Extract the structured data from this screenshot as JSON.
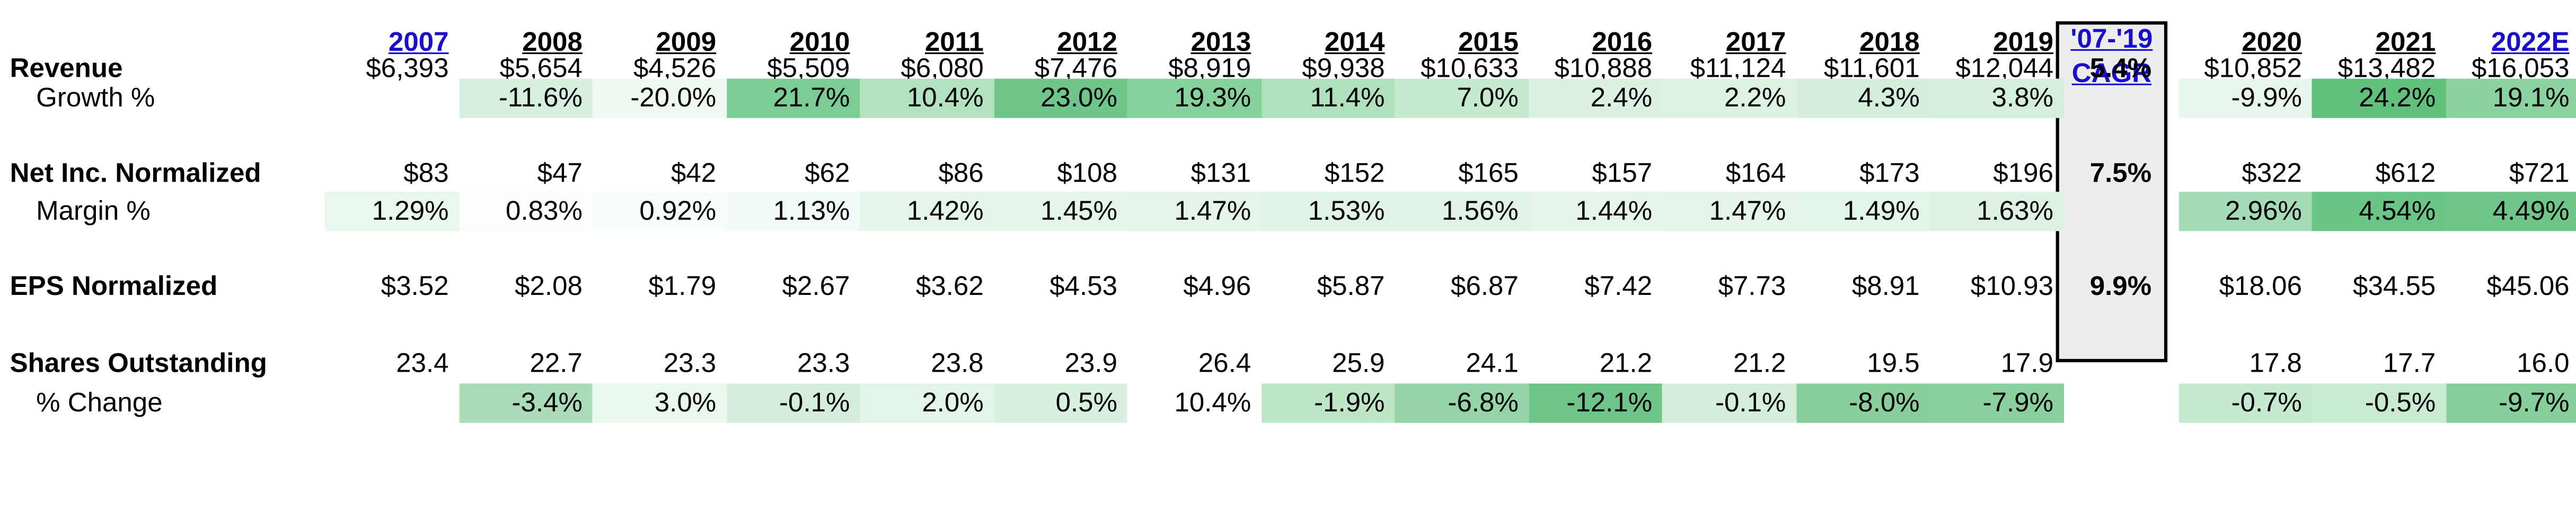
{
  "years": [
    "2007",
    "2008",
    "2009",
    "2010",
    "2011",
    "2012",
    "2013",
    "2014",
    "2015",
    "2016",
    "2017",
    "2018",
    "2019"
  ],
  "cagr_header": {
    "line1": "'07-'19",
    "line2": "CAGR"
  },
  "post_years": [
    "2020",
    "2021",
    "2022E"
  ],
  "rows": {
    "revenue": {
      "label": "Revenue",
      "values": [
        "$6,393",
        "$5,654",
        "$4,526",
        "$5,509",
        "$6,080",
        "$7,476",
        "$8,919",
        "$9,938",
        "$10,633",
        "$10,888",
        "$11,124",
        "$11,601",
        "$12,044"
      ],
      "cagr": "5.4%",
      "post": [
        "$10,852",
        "$13,482",
        "$16,053"
      ]
    },
    "growth": {
      "label": "Growth %",
      "values": [
        "",
        "-11.6%",
        "-20.0%",
        "21.7%",
        "10.4%",
        "23.0%",
        "19.3%",
        "11.4%",
        "7.0%",
        "2.4%",
        "2.2%",
        "4.3%",
        "3.8%"
      ],
      "post": [
        "-9.9%",
        "24.2%",
        "19.1%"
      ]
    },
    "net_inc": {
      "label": "Net Inc. Normalized",
      "values": [
        "$83",
        "$47",
        "$42",
        "$62",
        "$86",
        "$108",
        "$131",
        "$152",
        "$165",
        "$157",
        "$164",
        "$173",
        "$196"
      ],
      "cagr": "7.5%",
      "post": [
        "$322",
        "$612",
        "$721"
      ]
    },
    "margin": {
      "label": "Margin %",
      "values": [
        "1.29%",
        "0.83%",
        "0.92%",
        "1.13%",
        "1.42%",
        "1.45%",
        "1.47%",
        "1.53%",
        "1.56%",
        "1.44%",
        "1.47%",
        "1.49%",
        "1.63%"
      ],
      "post": [
        "2.96%",
        "4.54%",
        "4.49%"
      ]
    },
    "eps": {
      "label": "EPS Normalized",
      "values": [
        "$3.52",
        "$2.08",
        "$1.79",
        "$2.67",
        "$3.62",
        "$4.53",
        "$4.96",
        "$5.87",
        "$6.87",
        "$7.42",
        "$7.73",
        "$8.91",
        "$10.93"
      ],
      "cagr": "9.9%",
      "post": [
        "$18.06",
        "$34.55",
        "$45.06"
      ]
    },
    "shares": {
      "label": "Shares Outstanding",
      "values": [
        "23.4",
        "22.7",
        "23.3",
        "23.3",
        "23.8",
        "23.9",
        "26.4",
        "25.9",
        "24.1",
        "21.2",
        "21.2",
        "19.5",
        "17.9"
      ],
      "post": [
        "17.8",
        "17.7",
        "16.0"
      ]
    },
    "share_change": {
      "label": "% Change",
      "values": [
        "",
        "-3.4%",
        "3.0%",
        "-0.1%",
        "2.0%",
        "0.5%",
        "10.4%",
        "-1.9%",
        "-6.8%",
        "-12.1%",
        "-0.1%",
        "-8.0%",
        "-7.9%"
      ],
      "post": [
        "-0.7%",
        "-0.5%",
        "-9.7%"
      ]
    }
  },
  "heatmap_colors": {
    "growth": [
      "",
      "#d7efdf",
      "#eff9f2",
      "#7ccc95",
      "#b2e2bf",
      "#6fc68a",
      "#87d19d",
      "#b0e1bd",
      "#c6eacf",
      "#dbf1e1",
      "#ddf2e3",
      "#d3eedc",
      "#d5efdd"
    ],
    "growth_post": [
      "#e8f6ec",
      "#62c07f",
      "#8ad29f"
    ],
    "margin": [
      "#eaf7ee",
      "#fcfefc",
      "#f9fdfa",
      "#f1faf4",
      "#e6f5eb",
      "#e5f5ea",
      "#e4f4e9",
      "#e1f3e7",
      "#e0f3e6",
      "#e5f5ea",
      "#e4f4e9",
      "#e3f4e9",
      "#def2e4"
    ],
    "margin_post": [
      "#a6dcb5",
      "#6bc587",
      "#6fc68a"
    ],
    "share_change": [
      "",
      "#a9dcb7",
      "#eaf7ee",
      "#d4eedb",
      "#e3f4e8",
      "#d8f0df",
      "#ffffff",
      "#bde6c7",
      "#95d4a7",
      "#6fc48a",
      "#d4eedb",
      "#88cf9c",
      "#8ad09e"
    ],
    "share_change_post": [
      "#c6eacf",
      "#c9ebd2",
      "#86cf9b"
    ]
  }
}
